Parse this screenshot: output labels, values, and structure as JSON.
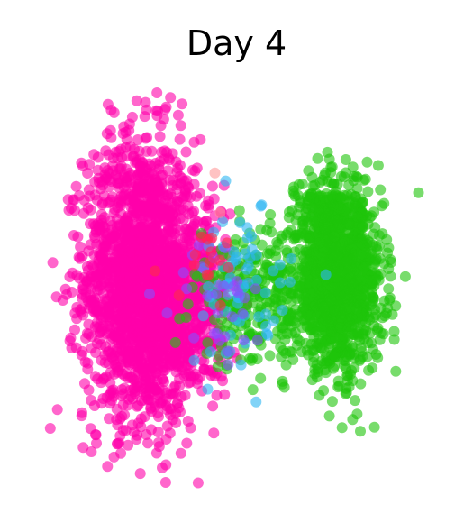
{
  "chart_data": {
    "type": "scatter",
    "title": "Day 4",
    "xlabel": "",
    "ylabel": "",
    "axes_visible": false,
    "grid": false,
    "legend": "none",
    "point_alpha": 0.6,
    "series": [
      {
        "color": "#ff00aa",
        "clusters": [
          {
            "center": [
              -2.6,
              0.2
            ],
            "spread": [
              0.75,
              1.6
            ],
            "count": 1800
          },
          {
            "center": [
              -1.4,
              -0.9
            ],
            "spread": [
              0.6,
              0.9
            ],
            "count": 320
          },
          {
            "center": [
              -0.9,
              0.5
            ],
            "spread": [
              0.45,
              1.0
            ],
            "count": 160
          }
        ]
      },
      {
        "color": "#1ec40a",
        "clusters": [
          {
            "center": [
              2.7,
              0.1
            ],
            "spread": [
              0.6,
              0.95
            ],
            "count": 1200
          },
          {
            "center": [
              2.5,
              1.6
            ],
            "spread": [
              0.45,
              0.55
            ],
            "count": 200
          },
          {
            "center": [
              0.6,
              -0.3
            ],
            "spread": [
              0.85,
              0.75
            ],
            "count": 260
          }
        ]
      },
      {
        "color": "#2db5f2",
        "clusters": [
          {
            "center": [
              0.1,
              0.0
            ],
            "spread": [
              0.7,
              0.9
            ],
            "count": 70
          }
        ]
      },
      {
        "color": "#8a4cff",
        "clusters": [
          {
            "center": [
              -0.5,
              -0.3
            ],
            "spread": [
              0.6,
              0.7
            ],
            "count": 30
          }
        ]
      },
      {
        "color": "#ff2a4a",
        "clusters": [
          {
            "center": [
              -0.9,
              0.8
            ],
            "spread": [
              0.5,
              0.6
            ],
            "count": 15
          }
        ]
      },
      {
        "color": "#ff9a9a",
        "clusters": [
          {
            "center": [
              -0.6,
              2.2
            ],
            "spread": [
              0.3,
              0.3
            ],
            "count": 2
          }
        ]
      }
    ],
    "xlim": [
      -5.2,
      5.2
    ],
    "ylim": [
      -4.4,
      4.6
    ]
  }
}
